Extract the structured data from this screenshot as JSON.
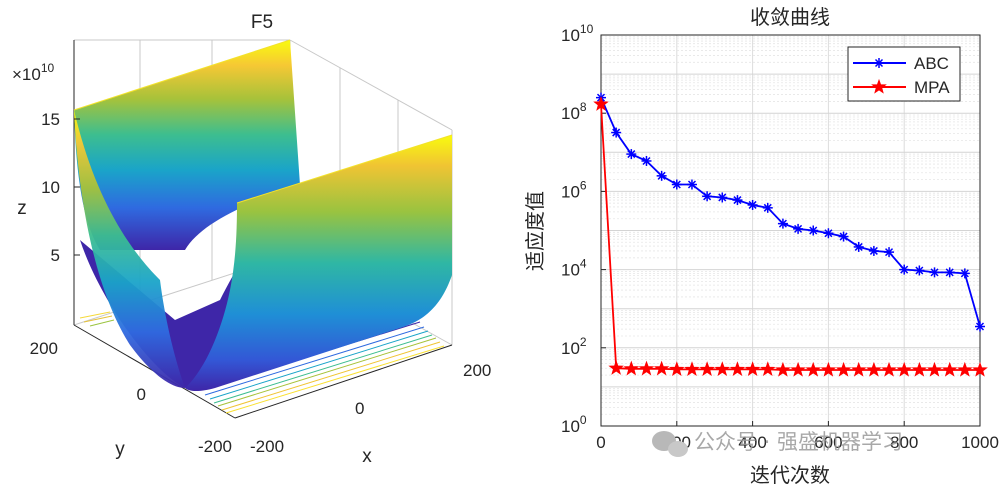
{
  "chart_data": [
    {
      "type": "surface",
      "title": "F5",
      "xlabel": "x",
      "ylabel": "y",
      "zlabel": "z",
      "z_exponent_label": "×10",
      "z_exponent_power": "10",
      "x_ticks": [
        "-200",
        "0",
        "200"
      ],
      "y_ticks": [
        "-200",
        "0",
        "200"
      ],
      "z_ticks": [
        "5",
        "10",
        "15"
      ],
      "z_tick_values": [
        5,
        10,
        15
      ],
      "xlim": [
        -200,
        200
      ],
      "ylim": [
        -200,
        200
      ],
      "zlim_e10": [
        0,
        16
      ],
      "colormap": "parula",
      "colors": [
        "#3e26a8",
        "#2f6ae0",
        "#1aa4c9",
        "#3dbe8f",
        "#a7c23a",
        "#f0c433",
        "#f9fb0e"
      ]
    },
    {
      "type": "line",
      "title": "收敛曲线",
      "xlabel": "迭代次数",
      "ylabel": "适应度值",
      "yscale": "log",
      "xlim": [
        0,
        1000
      ],
      "ylim": [
        1,
        10000000000
      ],
      "x_ticks": [
        "0",
        "200",
        "400",
        "600",
        "800",
        "1000"
      ],
      "x_tick_values": [
        0,
        200,
        400,
        600,
        800,
        1000
      ],
      "y_tick_base": "10",
      "y_tick_powers": [
        "0",
        "2",
        "4",
        "6",
        "8",
        "10"
      ],
      "y_tick_exponents": [
        0,
        2,
        4,
        6,
        8,
        10
      ],
      "legend_position": "top-right",
      "x": [
        0,
        40,
        80,
        120,
        160,
        200,
        240,
        280,
        320,
        360,
        400,
        440,
        480,
        520,
        560,
        600,
        640,
        680,
        720,
        760,
        800,
        840,
        880,
        920,
        960,
        1000
      ],
      "series": [
        {
          "name": "ABC",
          "color": "#0000ff",
          "marker": "asterisk",
          "values": [
            250000000,
            32000000,
            9000000,
            6000000,
            2500000,
            1500000,
            1500000,
            750000,
            700000,
            600000,
            450000,
            380000,
            150000,
            110000,
            100000,
            85000,
            70000,
            38000,
            30000,
            28000,
            10000,
            9500,
            8500,
            8500,
            8000,
            350
          ]
        },
        {
          "name": "MPA",
          "color": "#ff0000",
          "marker": "pentagram",
          "values": [
            170000000,
            30,
            29,
            29,
            29,
            28,
            28,
            28,
            28,
            28,
            28,
            28,
            27,
            27,
            27,
            27,
            27,
            27,
            27,
            27,
            27,
            27,
            27,
            27,
            27,
            27
          ]
        }
      ]
    }
  ],
  "watermark": "公众号 · 强盛机器学习"
}
